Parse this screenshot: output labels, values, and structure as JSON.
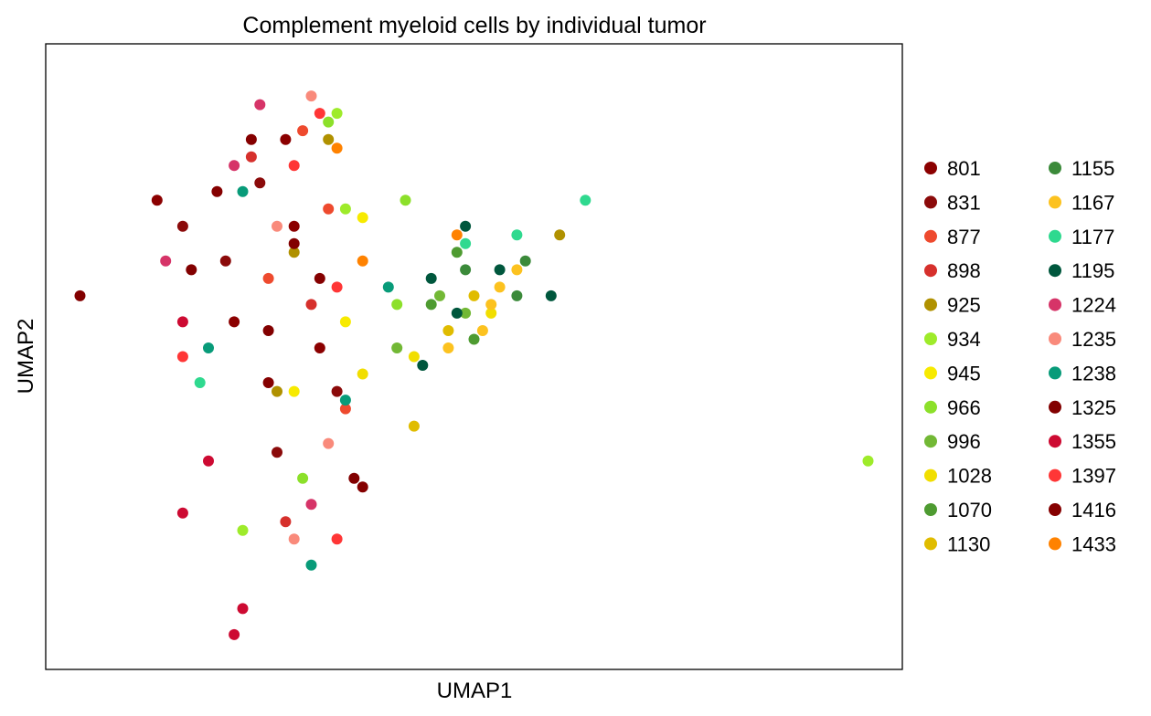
{
  "chart_data": {
    "type": "scatter",
    "title": "Complement myeloid cells by individual tumor",
    "xlabel": "UMAP1",
    "ylabel": "UMAP2",
    "xlim": [
      0,
      10
    ],
    "ylim": [
      0,
      7.2
    ],
    "grid": false,
    "ticks_visible": false,
    "legend_position": "right",
    "legend_columns": 2,
    "series": [
      {
        "name": "801",
        "color": "#8b0000",
        "points": [
          [
            1.3,
            5.4
          ],
          [
            2.9,
            5.1
          ],
          [
            2.2,
            4.0
          ],
          [
            3.2,
            3.7
          ],
          [
            2.8,
            6.1
          ]
        ]
      },
      {
        "name": "831",
        "color": "#8b0a0a",
        "points": [
          [
            1.6,
            5.1
          ],
          [
            2.5,
            5.6
          ],
          [
            2.1,
            4.7
          ],
          [
            3.4,
            3.2
          ],
          [
            2.7,
            2.5
          ]
        ]
      },
      {
        "name": "877",
        "color": "#ee4a2e",
        "points": [
          [
            3.0,
            6.2
          ],
          [
            2.6,
            4.5
          ],
          [
            3.5,
            3.0
          ],
          [
            3.3,
            5.3
          ]
        ]
      },
      {
        "name": "898",
        "color": "#d6302c",
        "points": [
          [
            2.4,
            5.9
          ],
          [
            3.1,
            4.2
          ],
          [
            2.8,
            1.7
          ]
        ]
      },
      {
        "name": "925",
        "color": "#b09100",
        "points": [
          [
            3.3,
            6.1
          ],
          [
            2.9,
            4.8
          ],
          [
            6.0,
            5.0
          ],
          [
            2.7,
            3.2
          ]
        ]
      },
      {
        "name": "934",
        "color": "#9eeb2a",
        "points": [
          [
            3.4,
            6.4
          ],
          [
            3.5,
            5.3
          ],
          [
            9.6,
            2.4
          ],
          [
            2.3,
            1.6
          ]
        ]
      },
      {
        "name": "945",
        "color": "#f7ea00",
        "points": [
          [
            3.7,
            5.2
          ],
          [
            3.5,
            4.0
          ],
          [
            2.9,
            3.2
          ]
        ]
      },
      {
        "name": "966",
        "color": "#8ce02a",
        "points": [
          [
            3.3,
            6.3
          ],
          [
            4.2,
            5.4
          ],
          [
            4.1,
            4.2
          ],
          [
            3.0,
            2.2
          ]
        ]
      },
      {
        "name": "996",
        "color": "#72b835",
        "points": [
          [
            4.6,
            4.3
          ],
          [
            4.1,
            3.7
          ],
          [
            4.9,
            4.1
          ]
        ]
      },
      {
        "name": "1028",
        "color": "#f1de00",
        "points": [
          [
            4.3,
            3.6
          ],
          [
            5.2,
            4.1
          ],
          [
            3.7,
            3.4
          ]
        ]
      },
      {
        "name": "1070",
        "color": "#4e9b31",
        "points": [
          [
            4.5,
            4.2
          ],
          [
            5.0,
            3.8
          ],
          [
            4.8,
            4.8
          ]
        ]
      },
      {
        "name": "1130",
        "color": "#e0bc00",
        "points": [
          [
            4.3,
            2.8
          ],
          [
            5.0,
            4.3
          ],
          [
            4.7,
            3.9
          ]
        ]
      },
      {
        "name": "1155",
        "color": "#3b8a3a",
        "points": [
          [
            5.6,
            4.7
          ],
          [
            5.5,
            4.3
          ],
          [
            4.9,
            4.6
          ]
        ]
      },
      {
        "name": "1167",
        "color": "#fcc21f",
        "points": [
          [
            5.3,
            4.4
          ],
          [
            5.1,
            3.9
          ],
          [
            5.5,
            4.6
          ],
          [
            4.7,
            3.7
          ],
          [
            5.2,
            4.2
          ]
        ]
      },
      {
        "name": "1177",
        "color": "#2fd98f",
        "points": [
          [
            6.3,
            5.4
          ],
          [
            5.5,
            5.0
          ],
          [
            1.8,
            3.3
          ],
          [
            4.9,
            4.9
          ]
        ]
      },
      {
        "name": "1195",
        "color": "#00573d",
        "points": [
          [
            4.9,
            5.1
          ],
          [
            4.5,
            4.5
          ],
          [
            5.3,
            4.6
          ],
          [
            4.8,
            4.1
          ],
          [
            4.4,
            3.5
          ],
          [
            5.9,
            4.3
          ]
        ]
      },
      {
        "name": "1224",
        "color": "#d63468",
        "points": [
          [
            2.5,
            6.5
          ],
          [
            2.2,
            5.8
          ],
          [
            1.4,
            4.7
          ],
          [
            3.1,
            1.9
          ]
        ]
      },
      {
        "name": "1235",
        "color": "#f98a7b",
        "points": [
          [
            3.1,
            6.6
          ],
          [
            2.7,
            5.1
          ],
          [
            3.3,
            2.6
          ],
          [
            2.9,
            1.5
          ]
        ]
      },
      {
        "name": "1238",
        "color": "#089b79",
        "points": [
          [
            2.3,
            5.5
          ],
          [
            4.0,
            4.4
          ],
          [
            1.9,
            3.7
          ],
          [
            3.5,
            3.1
          ],
          [
            3.1,
            1.2
          ]
        ]
      },
      {
        "name": "1325",
        "color": "#820000",
        "points": [
          [
            0.4,
            4.3
          ],
          [
            1.7,
            4.6
          ],
          [
            2.9,
            4.9
          ],
          [
            3.6,
            2.2
          ],
          [
            2.6,
            3.9
          ]
        ]
      },
      {
        "name": "1355",
        "color": "#cd0a32",
        "points": [
          [
            1.6,
            4.0
          ],
          [
            1.9,
            2.4
          ],
          [
            1.6,
            1.8
          ],
          [
            2.2,
            0.4
          ],
          [
            2.3,
            0.7
          ]
        ]
      },
      {
        "name": "1397",
        "color": "#ff3636",
        "points": [
          [
            3.2,
            6.4
          ],
          [
            2.9,
            5.8
          ],
          [
            1.6,
            3.6
          ],
          [
            3.4,
            4.4
          ],
          [
            3.4,
            1.5
          ]
        ]
      },
      {
        "name": "1416",
        "color": "#850000",
        "points": [
          [
            2.4,
            6.1
          ],
          [
            2.0,
            5.5
          ],
          [
            2.6,
            3.3
          ],
          [
            3.7,
            2.1
          ],
          [
            3.2,
            4.5
          ]
        ]
      },
      {
        "name": "1433",
        "color": "#ff8200",
        "points": [
          [
            3.4,
            6.0
          ],
          [
            3.7,
            4.7
          ],
          [
            4.8,
            5.0
          ]
        ]
      }
    ]
  }
}
